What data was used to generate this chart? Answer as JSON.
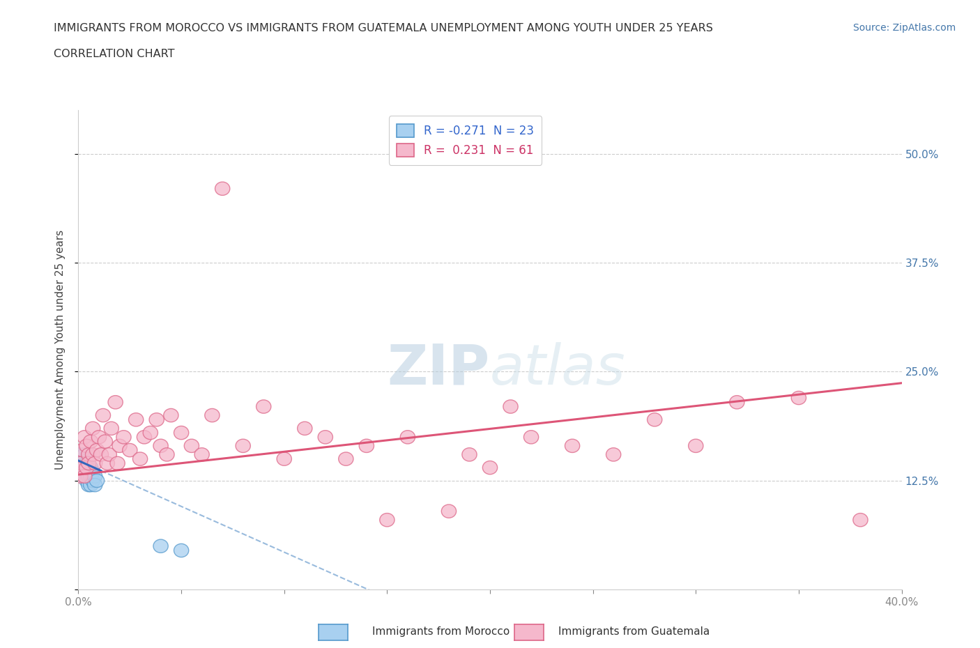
{
  "title_line1": "IMMIGRANTS FROM MOROCCO VS IMMIGRANTS FROM GUATEMALA UNEMPLOYMENT AMONG YOUTH UNDER 25 YEARS",
  "title_line2": "CORRELATION CHART",
  "source": "Source: ZipAtlas.com",
  "ylabel": "Unemployment Among Youth under 25 years",
  "xlim": [
    0.0,
    0.4
  ],
  "ylim": [
    0.0,
    0.55
  ],
  "ytick_positions": [
    0.125,
    0.25,
    0.375,
    0.5
  ],
  "ytick_labels": [
    "12.5%",
    "25.0%",
    "37.5%",
    "50.0%"
  ],
  "morocco_R": -0.271,
  "morocco_N": 23,
  "guatemala_R": 0.231,
  "guatemala_N": 61,
  "morocco_color": "#a8d0f0",
  "morocco_edge": "#5599cc",
  "guatemala_color": "#f5b8cc",
  "guatemala_edge": "#dd6688",
  "trend_morocco_solid_color": "#3366bb",
  "trend_morocco_dash_color": "#99bbdd",
  "trend_guatemala_color": "#dd5577",
  "watermark_color": "#cce0f0",
  "background_color": "#ffffff",
  "morocco_x": [
    0.001,
    0.002,
    0.002,
    0.003,
    0.003,
    0.003,
    0.004,
    0.004,
    0.004,
    0.005,
    0.005,
    0.005,
    0.005,
    0.006,
    0.006,
    0.006,
    0.007,
    0.007,
    0.008,
    0.008,
    0.009,
    0.04,
    0.05
  ],
  "morocco_y": [
    0.155,
    0.145,
    0.135,
    0.155,
    0.14,
    0.13,
    0.145,
    0.135,
    0.125,
    0.15,
    0.14,
    0.13,
    0.12,
    0.14,
    0.13,
    0.12,
    0.135,
    0.125,
    0.13,
    0.12,
    0.125,
    0.05,
    0.045
  ],
  "guatemala_x": [
    0.001,
    0.001,
    0.002,
    0.002,
    0.003,
    0.003,
    0.004,
    0.004,
    0.005,
    0.005,
    0.006,
    0.007,
    0.007,
    0.008,
    0.009,
    0.01,
    0.011,
    0.012,
    0.013,
    0.014,
    0.015,
    0.016,
    0.018,
    0.019,
    0.02,
    0.022,
    0.025,
    0.028,
    0.03,
    0.032,
    0.035,
    0.038,
    0.04,
    0.043,
    0.045,
    0.05,
    0.055,
    0.06,
    0.065,
    0.07,
    0.08,
    0.09,
    0.1,
    0.11,
    0.12,
    0.13,
    0.14,
    0.15,
    0.16,
    0.18,
    0.19,
    0.2,
    0.21,
    0.22,
    0.24,
    0.26,
    0.28,
    0.3,
    0.32,
    0.35,
    0.38
  ],
  "guatemala_y": [
    0.145,
    0.13,
    0.16,
    0.14,
    0.175,
    0.13,
    0.165,
    0.14,
    0.155,
    0.145,
    0.17,
    0.185,
    0.155,
    0.145,
    0.16,
    0.175,
    0.155,
    0.2,
    0.17,
    0.145,
    0.155,
    0.185,
    0.215,
    0.145,
    0.165,
    0.175,
    0.16,
    0.195,
    0.15,
    0.175,
    0.18,
    0.195,
    0.165,
    0.155,
    0.2,
    0.18,
    0.165,
    0.155,
    0.2,
    0.46,
    0.165,
    0.21,
    0.15,
    0.185,
    0.175,
    0.15,
    0.165,
    0.08,
    0.175,
    0.09,
    0.155,
    0.14,
    0.21,
    0.175,
    0.165,
    0.155,
    0.195,
    0.165,
    0.215,
    0.22,
    0.08
  ],
  "trend_morocco_x0": 0.0,
  "trend_morocco_x_solid_end": 0.011,
  "trend_morocco_x_dash_end": 0.22,
  "trend_morocco_y0": 0.148,
  "trend_morocco_slope": -1.05,
  "trend_guatemala_x0": 0.0,
  "trend_guatemala_x1": 0.4,
  "trend_guatemala_y0": 0.132,
  "trend_guatemala_y1": 0.237
}
